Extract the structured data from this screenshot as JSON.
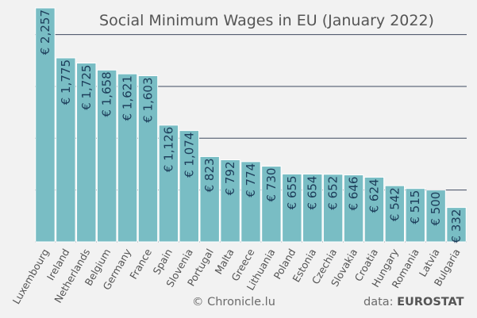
{
  "chart_data": {
    "type": "bar",
    "title": "Social Minimum Wages in EU (January 2022)",
    "categories": [
      "Luxembourg",
      "Ireland",
      "Netherlands",
      "Belgium",
      "Germany",
      "France",
      "Spain",
      "Slovenia",
      "Portugal",
      "Malta",
      "Greece",
      "Lithuania",
      "Poland",
      "Estonia",
      "Czechia",
      "Slovakia",
      "Croatia",
      "Hungary",
      "Romania",
      "Latvia",
      "Bulgaria"
    ],
    "values": [
      2257,
      1775,
      1725,
      1658,
      1621,
      1603,
      1126,
      1074,
      823,
      792,
      774,
      730,
      655,
      654,
      652,
      646,
      624,
      542,
      515,
      500,
      332
    ],
    "value_labels": [
      "€ 2,257",
      "€ 1,775",
      "€ 1,725",
      "€ 1,658",
      "€ 1,621",
      "€ 1,603",
      "€ 1,126",
      "€ 1,074",
      "€ 823",
      "€ 792",
      "€ 774",
      "€ 730",
      "€ 655",
      "€ 654",
      "€ 652",
      "€ 646",
      "€ 624",
      "€ 542",
      "€ 515",
      "€ 500",
      "€ 332"
    ],
    "ylim": [
      0,
      2257
    ],
    "gridlines": [
      500,
      1000,
      1500,
      2000
    ],
    "grid": true,
    "xlabel": "",
    "ylabel": "",
    "colors": {
      "bar": "#79bdc4",
      "bar_edge": "#ffffff",
      "grid": "#3f4a60",
      "value_text": "#1d3d5a",
      "axis_text": "#555555"
    }
  },
  "footer": {
    "credit": "©  Chronicle.lu",
    "source_prefix": "data: ",
    "source_name": "EUROSTAT"
  }
}
